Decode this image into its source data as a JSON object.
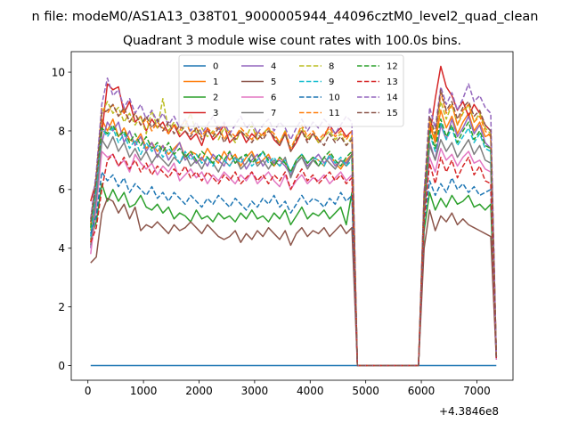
{
  "chart_data": {
    "type": "line",
    "suptitle": "n file: modeM0/AS1A13_038T01_9000005944_44096cztM0_level2_quad_clean",
    "title": "Quadrant 3 module wise count rates with 100.0s bins.",
    "xlabel": "",
    "ylabel": "",
    "x_offset_label": "+4.3846e8",
    "xlim": [
      -300,
      7650
    ],
    "ylim": [
      -0.5,
      10.7
    ],
    "xticks": [
      {
        "v": 0,
        "label": "0"
      },
      {
        "v": 1000,
        "label": "1000"
      },
      {
        "v": 2000,
        "label": "2000"
      },
      {
        "v": 3000,
        "label": "3000"
      },
      {
        "v": 4000,
        "label": "4000"
      },
      {
        "v": 5000,
        "label": "5000"
      },
      {
        "v": 6000,
        "label": "6000"
      },
      {
        "v": 7000,
        "label": "7000"
      }
    ],
    "yticks": [
      {
        "v": 0,
        "label": "0"
      },
      {
        "v": 2,
        "label": "2"
      },
      {
        "v": 4,
        "label": "4"
      },
      {
        "v": 6,
        "label": "6"
      },
      {
        "v": 8,
        "label": "8"
      },
      {
        "v": 10,
        "label": "10"
      }
    ],
    "grid": false,
    "legend": "upper-center, 4 columns",
    "segments": [
      {
        "x0": 50,
        "n": 48
      },
      {
        "x0": 4850,
        "n": 12
      },
      {
        "x0": 6050,
        "n": 14
      }
    ],
    "series": [
      {
        "name": "0",
        "color": "#1f77b4",
        "dash": "solid",
        "a": [
          0
        ],
        "b": [
          0
        ]
      },
      {
        "name": "1",
        "color": "#ff7f0e",
        "dash": "solid",
        "a": [
          4.2,
          6.0,
          8.4,
          8.0,
          8.4,
          7.8,
          8.1,
          7.7,
          7.6,
          7.9,
          7.4,
          7.6,
          7.3,
          7.5,
          7.2,
          7.4,
          7.6,
          7.1,
          7.3,
          7.2,
          7.0,
          7.4,
          7.1,
          6.9,
          7.3,
          7.0,
          7.2,
          6.8,
          7.1,
          7.3,
          6.9,
          7.0,
          7.2,
          6.8,
          7.1,
          6.9,
          6.6,
          7.0,
          7.2,
          6.9,
          7.1,
          7.0,
          6.8,
          7.2,
          6.9,
          6.7,
          7.0,
          7.2
        ],
        "b": [
          5.3,
          8.2,
          7.6,
          8.7,
          8.1,
          8.5,
          7.9,
          8.3,
          8.6,
          8.0,
          8.3,
          7.8,
          7.9,
          0.3
        ]
      },
      {
        "name": "2",
        "color": "#2ca02c",
        "dash": "solid",
        "a": [
          4.3,
          4.9,
          6.2,
          5.6,
          6.0,
          5.6,
          5.9,
          5.4,
          5.5,
          5.8,
          5.4,
          5.3,
          5.5,
          5.2,
          5.4,
          5.0,
          5.2,
          5.1,
          4.9,
          5.3,
          5.0,
          5.1,
          4.9,
          5.2,
          5.0,
          5.1,
          4.9,
          5.2,
          5.0,
          5.3,
          5.0,
          5.1,
          4.9,
          5.2,
          5.0,
          5.3,
          4.8,
          5.1,
          5.4,
          5.0,
          5.2,
          5.1,
          5.3,
          5.0,
          5.2,
          5.4,
          4.8,
          5.9
        ],
        "b": [
          4.6,
          5.9,
          5.3,
          5.7,
          5.4,
          5.8,
          5.5,
          5.6,
          5.8,
          5.4,
          5.5,
          5.3,
          5.5,
          0.2
        ]
      },
      {
        "name": "3",
        "color": "#d62728",
        "dash": "solid",
        "a": [
          5.6,
          6.3,
          7.9,
          9.6,
          9.4,
          9.5,
          8.6,
          9.0,
          8.3,
          8.5,
          8.0,
          8.4,
          8.1,
          8.3,
          7.9,
          8.2,
          7.8,
          8.0,
          7.7,
          7.9,
          7.5,
          8.1,
          7.7,
          7.9,
          8.2,
          7.6,
          7.8,
          8.0,
          7.6,
          7.9,
          7.7,
          7.9,
          8.1,
          7.7,
          7.5,
          7.9,
          7.3,
          7.6,
          8.0,
          7.7,
          7.9,
          7.6,
          7.8,
          8.2,
          7.9,
          8.1,
          7.8,
          8.0
        ],
        "b": [
          5.9,
          7.8,
          9.1,
          10.2,
          9.5,
          9.2,
          8.7,
          9.0,
          8.5,
          8.9,
          8.6,
          8.2,
          8.0,
          0.3
        ]
      },
      {
        "name": "4",
        "color": "#9467bd",
        "dash": "solid",
        "a": [
          4.0,
          6.0,
          7.6,
          8.3,
          8.0,
          8.3,
          7.6,
          8.0,
          7.5,
          7.8,
          7.3,
          7.6,
          7.1,
          7.5,
          7.0,
          7.3,
          7.6,
          7.0,
          7.2,
          6.9,
          7.1,
          6.8,
          7.2,
          7.0,
          6.8,
          7.3,
          6.9,
          7.1,
          6.7,
          7.0,
          7.2,
          6.8,
          7.1,
          6.9,
          7.0,
          6.8,
          6.5,
          6.9,
          7.1,
          6.8,
          7.0,
          7.2,
          6.9,
          7.1,
          6.8,
          7.0,
          6.9,
          7.2
        ],
        "b": [
          5.4,
          7.6,
          7.0,
          8.2,
          7.7,
          8.4,
          7.8,
          8.1,
          8.5,
          7.9,
          8.2,
          7.6,
          7.4,
          0.3
        ]
      },
      {
        "name": "5",
        "color": "#8c564b",
        "dash": "solid",
        "a": [
          3.5,
          3.7,
          5.2,
          5.7,
          5.6,
          5.2,
          5.5,
          5.0,
          5.4,
          4.6,
          4.8,
          4.7,
          4.9,
          4.7,
          4.5,
          4.8,
          4.6,
          4.7,
          4.9,
          4.7,
          4.5,
          4.8,
          4.6,
          4.4,
          4.3,
          4.4,
          4.6,
          4.2,
          4.5,
          4.3,
          4.6,
          4.4,
          4.7,
          4.5,
          4.3,
          4.6,
          4.1,
          4.5,
          4.7,
          4.4,
          4.6,
          4.5,
          4.7,
          4.4,
          4.6,
          4.8,
          4.5,
          4.7
        ],
        "b": [
          4.0,
          5.3,
          4.6,
          5.1,
          4.9,
          5.2,
          4.8,
          5.0,
          4.8,
          4.7,
          4.6,
          4.5,
          4.4,
          0.2
        ]
      },
      {
        "name": "6",
        "color": "#e377c2",
        "dash": "solid",
        "a": [
          3.8,
          5.4,
          7.3,
          7.1,
          7.2,
          6.8,
          7.0,
          6.6,
          7.2,
          6.9,
          6.7,
          6.9,
          6.5,
          6.8,
          6.6,
          6.9,
          6.3,
          6.5,
          6.7,
          6.4,
          6.6,
          6.2,
          6.5,
          6.3,
          6.6,
          6.4,
          6.2,
          6.5,
          6.3,
          6.6,
          6.2,
          6.4,
          6.6,
          6.3,
          6.1,
          6.5,
          6.0,
          6.3,
          6.5,
          6.2,
          6.4,
          6.3,
          6.5,
          6.2,
          6.4,
          6.6,
          6.3,
          6.5
        ],
        "b": [
          5.1,
          7.1,
          6.6,
          7.4,
          7.0,
          7.2,
          6.8,
          7.1,
          7.3,
          6.9,
          7.0,
          6.7,
          6.6,
          0.2
        ]
      },
      {
        "name": "7",
        "color": "#7f7f7f",
        "dash": "solid",
        "a": [
          4.1,
          5.7,
          7.7,
          7.4,
          7.8,
          7.3,
          7.6,
          7.1,
          7.4,
          7.0,
          7.3,
          6.9,
          7.2,
          7.0,
          6.8,
          7.1,
          6.9,
          7.2,
          6.8,
          7.0,
          6.7,
          7.1,
          6.9,
          6.6,
          7.0,
          6.8,
          7.1,
          6.7,
          6.9,
          7.2,
          6.8,
          7.0,
          6.7,
          7.0,
          6.8,
          7.1,
          6.4,
          6.9,
          7.1,
          6.7,
          7.0,
          6.8,
          7.1,
          6.9,
          6.7,
          7.0,
          6.8,
          7.2
        ],
        "b": [
          5.2,
          7.5,
          7.0,
          7.7,
          7.3,
          7.6,
          7.1,
          7.4,
          7.7,
          7.2,
          7.5,
          7.0,
          6.9,
          0.3
        ]
      },
      {
        "name": "8",
        "color": "#bcbd22",
        "dash": "dashed",
        "a": [
          4.6,
          6.4,
          8.6,
          9.0,
          8.6,
          8.8,
          8.3,
          8.6,
          8.2,
          8.5,
          7.9,
          8.7,
          8.1,
          9.1,
          8.0,
          8.3,
          7.9,
          8.2,
          8.6,
          7.9,
          8.1,
          7.8,
          8.0,
          7.7,
          8.1,
          7.9,
          7.6,
          8.0,
          7.8,
          8.2,
          7.7,
          7.9,
          8.1,
          7.8,
          7.6,
          8.0,
          7.3,
          7.8,
          8.1,
          7.7,
          7.9,
          7.6,
          7.8,
          8.0,
          7.7,
          7.9,
          7.5,
          7.8
        ],
        "b": [
          5.6,
          8.4,
          7.8,
          9.0,
          8.4,
          8.9,
          8.2,
          8.6,
          8.9,
          8.3,
          8.6,
          8.1,
          7.9,
          0.3
        ]
      },
      {
        "name": "9",
        "color": "#17becf",
        "dash": "dashed",
        "a": [
          4.4,
          6.1,
          8.1,
          7.8,
          8.1,
          7.6,
          7.9,
          7.4,
          7.7,
          7.2,
          7.6,
          7.3,
          7.5,
          7.1,
          7.4,
          7.2,
          6.9,
          7.3,
          7.0,
          7.2,
          6.9,
          7.1,
          6.8,
          7.2,
          7.0,
          6.8,
          7.1,
          6.9,
          7.2,
          6.8,
          7.0,
          7.3,
          6.9,
          7.1,
          6.8,
          7.0,
          6.6,
          7.0,
          7.2,
          6.9,
          7.1,
          7.0,
          6.8,
          7.2,
          6.9,
          7.1,
          6.8,
          7.0
        ],
        "b": [
          5.4,
          7.9,
          7.3,
          8.3,
          7.7,
          8.1,
          7.5,
          7.8,
          8.1,
          7.6,
          7.9,
          7.4,
          7.3,
          0.3
        ]
      },
      {
        "name": "10",
        "color": "#1f77b4",
        "dash": "dashed",
        "a": [
          4.5,
          5.1,
          6.6,
          6.3,
          6.5,
          6.1,
          6.4,
          5.9,
          6.2,
          6.0,
          5.8,
          6.1,
          5.7,
          5.9,
          5.6,
          5.9,
          5.7,
          5.5,
          5.8,
          5.6,
          5.4,
          5.7,
          5.5,
          5.8,
          5.6,
          5.4,
          5.7,
          5.5,
          5.3,
          5.6,
          5.4,
          5.7,
          5.5,
          5.8,
          5.4,
          5.6,
          5.2,
          5.5,
          5.8,
          5.5,
          5.7,
          5.6,
          5.4,
          5.7,
          5.5,
          5.9,
          5.6,
          5.8
        ],
        "b": [
          4.9,
          6.3,
          5.8,
          6.2,
          5.9,
          6.4,
          6.0,
          6.2,
          5.9,
          6.1,
          5.8,
          5.9,
          6.0,
          0.2
        ]
      },
      {
        "name": "11",
        "color": "#ff7f0e",
        "dash": "dashed",
        "a": [
          4.8,
          6.5,
          8.8,
          8.6,
          8.9,
          8.5,
          8.7,
          8.3,
          8.6,
          8.2,
          8.4,
          8.0,
          8.3,
          8.1,
          7.9,
          8.2,
          8.0,
          8.4,
          7.9,
          8.1,
          7.8,
          8.1,
          7.9,
          8.2,
          7.7,
          8.0,
          7.8,
          8.1,
          7.9,
          7.7,
          8.0,
          7.8,
          8.1,
          7.9,
          7.6,
          8.0,
          7.4,
          7.8,
          8.2,
          7.8,
          8.0,
          7.7,
          7.9,
          8.1,
          7.8,
          8.0,
          7.7,
          8.0
        ],
        "b": [
          5.7,
          8.3,
          7.7,
          9.3,
          8.6,
          8.9,
          8.2,
          8.7,
          8.9,
          8.3,
          8.5,
          8.0,
          7.8,
          0.3
        ]
      },
      {
        "name": "12",
        "color": "#2ca02c",
        "dash": "dashed",
        "a": [
          4.7,
          6.3,
          8.1,
          7.9,
          8.2,
          7.8,
          8.0,
          7.6,
          7.9,
          7.5,
          7.8,
          7.4,
          7.6,
          7.3,
          7.6,
          7.2,
          7.4,
          7.1,
          7.3,
          7.0,
          7.3,
          7.1,
          6.9,
          7.2,
          7.0,
          7.3,
          6.9,
          7.1,
          7.2,
          6.9,
          7.1,
          7.3,
          7.0,
          6.8,
          7.1,
          6.9,
          6.6,
          7.0,
          7.2,
          6.9,
          7.1,
          6.8,
          7.1,
          7.3,
          7.0,
          6.8,
          7.1,
          7.3
        ],
        "b": [
          5.5,
          8.0,
          7.4,
          8.4,
          7.8,
          8.2,
          7.6,
          8.0,
          8.3,
          7.7,
          8.0,
          7.5,
          7.4,
          0.3
        ]
      },
      {
        "name": "13",
        "color": "#d62728",
        "dash": "dashed",
        "a": [
          4.2,
          4.7,
          6.0,
          7.0,
          7.2,
          6.8,
          7.1,
          6.7,
          7.0,
          6.6,
          6.9,
          6.5,
          6.8,
          6.6,
          6.4,
          6.7,
          6.5,
          6.8,
          6.4,
          6.6,
          6.3,
          6.6,
          6.4,
          6.2,
          6.5,
          6.3,
          6.6,
          6.2,
          6.4,
          6.6,
          6.3,
          6.5,
          6.2,
          6.5,
          6.3,
          6.6,
          6.0,
          6.4,
          6.7,
          6.3,
          6.5,
          6.2,
          6.4,
          6.6,
          6.3,
          6.5,
          6.2,
          6.4
        ],
        "b": [
          5.0,
          6.9,
          6.2,
          7.1,
          6.6,
          7.0,
          6.4,
          6.8,
          7.1,
          6.5,
          6.8,
          6.3,
          6.2,
          0.2
        ]
      },
      {
        "name": "14",
        "color": "#9467bd",
        "dash": "dashed",
        "a": [
          5.0,
          6.6,
          8.9,
          9.8,
          9.2,
          9.4,
          8.8,
          9.1,
          8.6,
          8.9,
          8.4,
          8.7,
          8.3,
          8.6,
          8.2,
          8.5,
          8.1,
          8.4,
          8.0,
          8.3,
          7.9,
          8.2,
          8.5,
          8.0,
          8.3,
          7.9,
          8.2,
          8.5,
          8.1,
          8.3,
          7.9,
          8.2,
          8.4,
          8.0,
          8.3,
          8.1,
          7.7,
          8.1,
          8.4,
          8.0,
          8.3,
          8.1,
          8.4,
          8.2,
          7.9,
          8.2,
          8.5,
          8.3
        ],
        "b": [
          5.9,
          8.8,
          8.1,
          9.5,
          8.9,
          9.3,
          8.7,
          9.1,
          9.6,
          9.0,
          9.2,
          8.8,
          8.6,
          0.3
        ]
      },
      {
        "name": "15",
        "color": "#8c564b",
        "dash": "dashed",
        "a": [
          4.9,
          6.4,
          8.6,
          8.7,
          8.9,
          8.5,
          8.8,
          8.3,
          8.6,
          8.2,
          8.5,
          8.1,
          8.4,
          8.0,
          8.3,
          7.9,
          8.2,
          8.0,
          7.8,
          8.1,
          7.7,
          8.0,
          7.8,
          8.1,
          7.6,
          7.9,
          7.7,
          8.0,
          7.8,
          7.6,
          7.9,
          7.7,
          8.0,
          7.8,
          7.5,
          7.9,
          7.3,
          7.7,
          8.0,
          7.6,
          7.9,
          7.7,
          7.5,
          7.9,
          7.6,
          7.8,
          7.5,
          7.7
        ],
        "b": [
          5.6,
          8.5,
          7.9,
          9.4,
          8.7,
          9.0,
          8.4,
          8.8,
          9.0,
          8.5,
          8.7,
          8.2,
          8.0,
          0.3
        ]
      }
    ]
  }
}
